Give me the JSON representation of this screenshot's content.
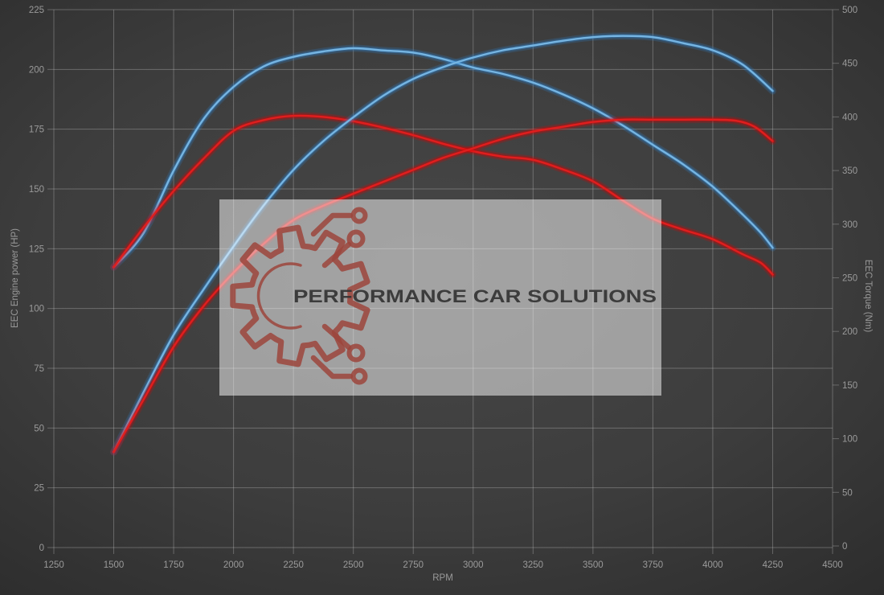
{
  "watermark": {
    "text": "PERFORMANCE CAR SOLUTIONS",
    "box_color": "#ffffff",
    "box_opacity": 0.5,
    "logo_color": "#9c453c",
    "text_color": "#333333"
  },
  "axes": {
    "x": {
      "label": "RPM",
      "min": 1250,
      "max": 4500,
      "step": 250,
      "ticks": [
        1250,
        1500,
        1750,
        2000,
        2250,
        2500,
        2750,
        3000,
        3250,
        3500,
        3750,
        4000,
        4250,
        4500
      ]
    },
    "y_left": {
      "label": "EEC Engine power (HP)",
      "min": 0,
      "max": 225,
      "step": 25,
      "ticks": [
        0,
        25,
        50,
        75,
        100,
        125,
        150,
        175,
        200,
        225
      ]
    },
    "y_right": {
      "label": "EEC Torque (Nm)",
      "min": 0,
      "max": 500,
      "step": 50,
      "ticks": [
        0,
        50,
        100,
        150,
        200,
        250,
        300,
        350,
        400,
        450,
        500
      ]
    }
  },
  "colors": {
    "grid": "#cfcfcf",
    "grid_opacity": 0.33,
    "tick_text": "#9a9a9a",
    "tuned_core": "#76b5e2",
    "tuned_glow": "#2f86d1",
    "stock_core": "#e01e1e",
    "stock_glow": "#dd0000"
  },
  "chart_data": {
    "type": "line",
    "title": "",
    "xlabel": "RPM",
    "ylabel_left": "EEC Engine power (HP)",
    "ylabel_right": "EEC Torque (Nm)",
    "x_range": [
      1250,
      4500
    ],
    "y_left_range": [
      0,
      225
    ],
    "y_right_range": [
      0,
      500
    ],
    "grid": true,
    "legend": "none",
    "series": [
      {
        "name": "torque-tuned-nm",
        "color_key": "tuned",
        "axis": "right",
        "unit": "Nm",
        "points": [
          [
            1500,
            260
          ],
          [
            1625,
            292
          ],
          [
            1750,
            350
          ],
          [
            1875,
            398
          ],
          [
            2000,
            428
          ],
          [
            2125,
            447
          ],
          [
            2250,
            456
          ],
          [
            2375,
            461
          ],
          [
            2500,
            464
          ],
          [
            2625,
            462
          ],
          [
            2750,
            460
          ],
          [
            2875,
            454
          ],
          [
            3000,
            446
          ],
          [
            3125,
            440
          ],
          [
            3250,
            432
          ],
          [
            3375,
            421
          ],
          [
            3500,
            408
          ],
          [
            3625,
            392
          ],
          [
            3750,
            374
          ],
          [
            3875,
            356
          ],
          [
            4000,
            335
          ],
          [
            4125,
            309
          ],
          [
            4200,
            292
          ],
          [
            4250,
            278
          ]
        ]
      },
      {
        "name": "torque-stock-nm",
        "color_key": "stock",
        "axis": "right",
        "unit": "Nm",
        "points": [
          [
            1500,
            260
          ],
          [
            1625,
            297
          ],
          [
            1750,
            331
          ],
          [
            1875,
            361
          ],
          [
            2000,
            387
          ],
          [
            2125,
            397
          ],
          [
            2250,
            401
          ],
          [
            2375,
            400
          ],
          [
            2500,
            396
          ],
          [
            2625,
            390
          ],
          [
            2750,
            383
          ],
          [
            2875,
            375
          ],
          [
            3000,
            368
          ],
          [
            3125,
            363
          ],
          [
            3250,
            360
          ],
          [
            3375,
            351
          ],
          [
            3500,
            340
          ],
          [
            3625,
            322
          ],
          [
            3750,
            305
          ],
          [
            3875,
            295
          ],
          [
            4000,
            286
          ],
          [
            4125,
            272
          ],
          [
            4200,
            264
          ],
          [
            4250,
            253
          ]
        ]
      },
      {
        "name": "power-tuned-hp",
        "color_key": "tuned",
        "axis": "left",
        "unit": "HP",
        "points": [
          [
            1500,
            40
          ],
          [
            1625,
            65
          ],
          [
            1750,
            89
          ],
          [
            1875,
            108
          ],
          [
            2000,
            126
          ],
          [
            2125,
            143
          ],
          [
            2250,
            158
          ],
          [
            2375,
            170
          ],
          [
            2500,
            180
          ],
          [
            2625,
            189
          ],
          [
            2750,
            196
          ],
          [
            2875,
            201
          ],
          [
            3000,
            205
          ],
          [
            3125,
            208
          ],
          [
            3250,
            210
          ],
          [
            3375,
            212
          ],
          [
            3500,
            213.5
          ],
          [
            3625,
            214
          ],
          [
            3750,
            213.5
          ],
          [
            3875,
            211
          ],
          [
            4000,
            208
          ],
          [
            4125,
            202
          ],
          [
            4250,
            191
          ]
        ]
      },
      {
        "name": "power-stock-hp",
        "color_key": "stock",
        "axis": "left",
        "unit": "HP",
        "points": [
          [
            1500,
            40
          ],
          [
            1625,
            62
          ],
          [
            1750,
            84
          ],
          [
            1875,
            101
          ],
          [
            2000,
            115
          ],
          [
            2125,
            127
          ],
          [
            2250,
            137
          ],
          [
            2375,
            143
          ],
          [
            2500,
            148
          ],
          [
            2625,
            153
          ],
          [
            2750,
            158
          ],
          [
            2875,
            163
          ],
          [
            3000,
            167
          ],
          [
            3125,
            171
          ],
          [
            3250,
            174
          ],
          [
            3375,
            176
          ],
          [
            3500,
            178
          ],
          [
            3625,
            179
          ],
          [
            3750,
            179
          ],
          [
            3875,
            179
          ],
          [
            4000,
            179
          ],
          [
            4100,
            178.5
          ],
          [
            4175,
            176
          ],
          [
            4250,
            170
          ]
        ]
      }
    ]
  }
}
